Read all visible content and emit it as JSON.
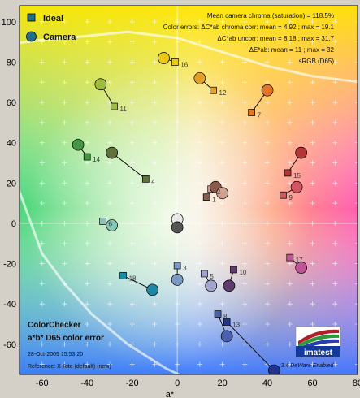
{
  "chart_data": {
    "type": "scatter",
    "title": "ColorChecker",
    "subtitle": "a*b* D65 color error",
    "date": "28-Oct-2009 15:53:20",
    "reference": "Reference: X-Rite (default) (new)",
    "xlabel": "a*",
    "ylabel": "",
    "xlim": [
      -70,
      80
    ],
    "ylim": [
      -75,
      108
    ],
    "xticks": [
      -60,
      -40,
      -20,
      0,
      20,
      40,
      60,
      80
    ],
    "yticks": [
      -60,
      -40,
      -20,
      0,
      20,
      40,
      60,
      80,
      100
    ],
    "legend": {
      "placement": "top-left",
      "ideal_label": "Ideal",
      "camera_label": "Camera"
    },
    "stats": [
      "Mean camera chroma (saturation) = 118.5%",
      "Color errors: ΔC*ab chroma corr: mean = 4.92 ; max = 19.1",
      "ΔC*ab uncorr: mean = 8.18 ; max = 31.7",
      "ΔE*ab: mean = 11 ; max = 32",
      "sRGB (D65)"
    ],
    "logo": "imatest",
    "credit": "3.4 DeWare Enabled",
    "patches": [
      {
        "id": "1",
        "ideal": [
          13,
          13
        ],
        "camera": [
          17,
          18
        ],
        "color": "#8a5a4a"
      },
      {
        "id": "2",
        "ideal": [
          15,
          17
        ],
        "camera": [
          20,
          15
        ],
        "color": "#d3a090"
      },
      {
        "id": "3",
        "ideal": [
          0,
          -21
        ],
        "camera": [
          0,
          -28
        ],
        "color": "#7b9ac4"
      },
      {
        "id": "4",
        "ideal": [
          -14,
          22
        ],
        "camera": [
          -29,
          35
        ],
        "color": "#60713c"
      },
      {
        "id": "5",
        "ideal": [
          12,
          -25
        ],
        "camera": [
          15,
          -31
        ],
        "color": "#a3a5cf"
      },
      {
        "id": "6",
        "ideal": [
          -33,
          1
        ],
        "camera": [
          -29,
          -1
        ],
        "color": "#83c8ba"
      },
      {
        "id": "7",
        "ideal": [
          33,
          55
        ],
        "camera": [
          40,
          66
        ],
        "color": "#e3762a"
      },
      {
        "id": "8",
        "ideal": [
          18,
          -45
        ],
        "camera": [
          22,
          -56
        ],
        "color": "#4b60b0"
      },
      {
        "id": "9",
        "ideal": [
          47,
          14
        ],
        "camera": [
          53,
          18
        ],
        "color": "#d4545f"
      },
      {
        "id": "10",
        "ideal": [
          25,
          -23
        ],
        "camera": [
          23,
          -31
        ],
        "color": "#5e3c6e"
      },
      {
        "id": "11",
        "ideal": [
          -28,
          58
        ],
        "camera": [
          -34,
          69
        ],
        "color": "#9ebd3c"
      },
      {
        "id": "12",
        "ideal": [
          16,
          66
        ],
        "camera": [
          10,
          72
        ],
        "color": "#e3a12a"
      },
      {
        "id": "13",
        "ideal": [
          22,
          -49
        ],
        "camera": [
          43,
          -73
        ],
        "color": "#22328f"
      },
      {
        "id": "14",
        "ideal": [
          -40,
          33
        ],
        "camera": [
          -44,
          39
        ],
        "color": "#469645"
      },
      {
        "id": "15",
        "ideal": [
          49,
          25
        ],
        "camera": [
          55,
          35
        ],
        "color": "#b43536"
      },
      {
        "id": "16",
        "ideal": [
          -1,
          80
        ],
        "camera": [
          -6,
          82
        ],
        "color": "#eec816"
      },
      {
        "id": "17",
        "ideal": [
          50,
          -17
        ],
        "camera": [
          55,
          -22
        ],
        "color": "#c05494"
      },
      {
        "id": "18",
        "ideal": [
          -24,
          -26
        ],
        "camera": [
          -11,
          -33
        ],
        "color": "#1c88a5"
      },
      {
        "id": "W",
        "ideal": [
          0,
          0
        ],
        "camera": [
          0,
          2
        ],
        "color": "#e8e8e8"
      },
      {
        "id": "N",
        "ideal": [
          0,
          0
        ],
        "camera": [
          0,
          -2
        ],
        "color": "#555555"
      }
    ]
  }
}
